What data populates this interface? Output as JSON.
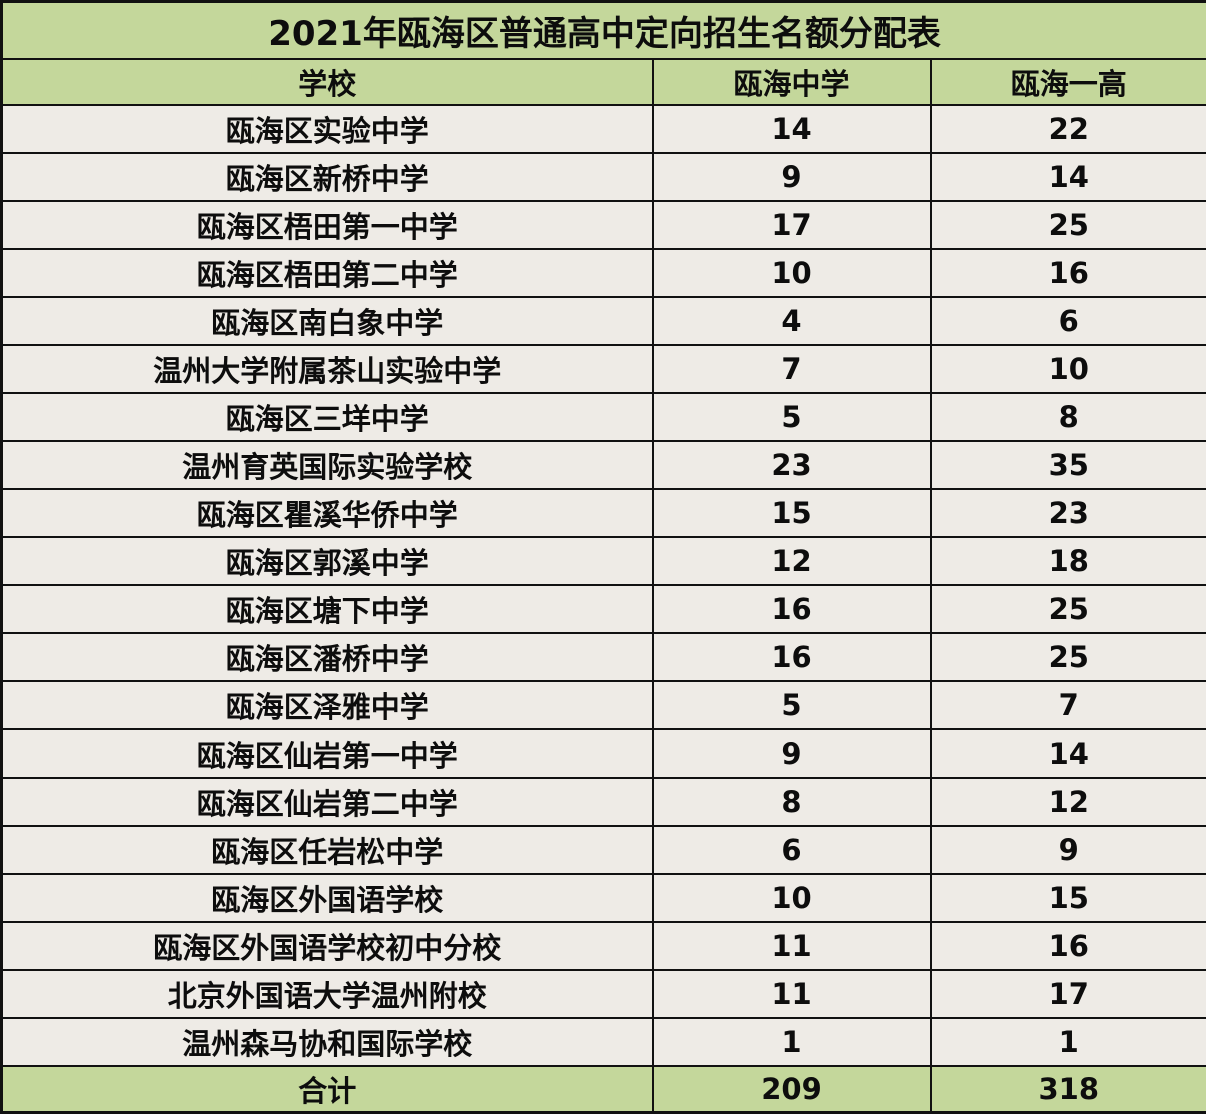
{
  "title": "2021年瓯海区普通高中定向招生名额分配表",
  "colors": {
    "header_green": "#c4d79b",
    "cell_bg": "#eeebe6",
    "border": "#111111",
    "text": "#0d0d0d"
  },
  "table": {
    "headers": [
      "学校",
      "瓯海中学",
      "瓯海一高"
    ],
    "rows": [
      {
        "school": "瓯海区实验中学",
        "ouhai_zhongxue": "14",
        "ouhai_yigao": "22"
      },
      {
        "school": "瓯海区新桥中学",
        "ouhai_zhongxue": "9",
        "ouhai_yigao": "14"
      },
      {
        "school": "瓯海区梧田第一中学",
        "ouhai_zhongxue": "17",
        "ouhai_yigao": "25"
      },
      {
        "school": "瓯海区梧田第二中学",
        "ouhai_zhongxue": "10",
        "ouhai_yigao": "16"
      },
      {
        "school": "瓯海区南白象中学",
        "ouhai_zhongxue": "4",
        "ouhai_yigao": "6"
      },
      {
        "school": "温州大学附属茶山实验中学",
        "ouhai_zhongxue": "7",
        "ouhai_yigao": "10"
      },
      {
        "school": "瓯海区三垟中学",
        "ouhai_zhongxue": "5",
        "ouhai_yigao": "8"
      },
      {
        "school": "温州育英国际实验学校",
        "ouhai_zhongxue": "23",
        "ouhai_yigao": "35"
      },
      {
        "school": "瓯海区瞿溪华侨中学",
        "ouhai_zhongxue": "15",
        "ouhai_yigao": "23"
      },
      {
        "school": "瓯海区郭溪中学",
        "ouhai_zhongxue": "12",
        "ouhai_yigao": "18"
      },
      {
        "school": "瓯海区塘下中学",
        "ouhai_zhongxue": "16",
        "ouhai_yigao": "25"
      },
      {
        "school": "瓯海区潘桥中学",
        "ouhai_zhongxue": "16",
        "ouhai_yigao": "25"
      },
      {
        "school": "瓯海区泽雅中学",
        "ouhai_zhongxue": "5",
        "ouhai_yigao": "7"
      },
      {
        "school": "瓯海区仙岩第一中学",
        "ouhai_zhongxue": "9",
        "ouhai_yigao": "14"
      },
      {
        "school": "瓯海区仙岩第二中学",
        "ouhai_zhongxue": "8",
        "ouhai_yigao": "12"
      },
      {
        "school": "瓯海区任岩松中学",
        "ouhai_zhongxue": "6",
        "ouhai_yigao": "9"
      },
      {
        "school": "瓯海区外国语学校",
        "ouhai_zhongxue": "10",
        "ouhai_yigao": "15"
      },
      {
        "school": "瓯海区外国语学校初中分校",
        "ouhai_zhongxue": "11",
        "ouhai_yigao": "16"
      },
      {
        "school": "北京外国语大学温州附校",
        "ouhai_zhongxue": "11",
        "ouhai_yigao": "17"
      },
      {
        "school": "温州森马协和国际学校",
        "ouhai_zhongxue": "1",
        "ouhai_yigao": "1"
      }
    ],
    "total": {
      "label": "合计",
      "ouhai_zhongxue": "209",
      "ouhai_yigao": "318"
    }
  }
}
